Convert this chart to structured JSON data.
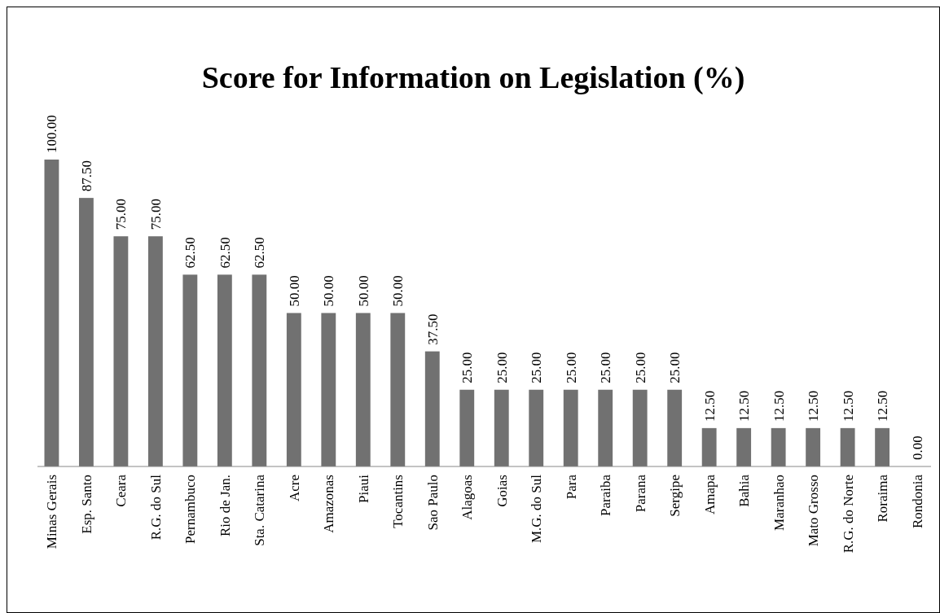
{
  "chart_data": {
    "type": "bar",
    "title": "Score for Information on Legislation (%)",
    "categories": [
      "Minas Gerais",
      "Esp. Santo",
      "Ceara",
      "R.G. do Sul",
      "Pernambuco",
      "Rio de Jan.",
      "Sta. Catarina",
      "Acre",
      "Amazonas",
      "Piaui",
      "Tocantins",
      "Sao Paulo",
      "Alagoas",
      "Goias",
      "M.G. do Sul",
      "Para",
      "Paraiba",
      "Parana",
      "Sergipe",
      "Amapa",
      "Bahia",
      "Maranhao",
      "Mato Grosso",
      "R.G. do Norte",
      "Roraima",
      "Rondonia"
    ],
    "values": [
      100,
      87.5,
      75,
      75,
      62.5,
      62.5,
      62.5,
      50,
      50,
      50,
      50,
      37.5,
      25,
      25,
      25,
      25,
      25,
      25,
      25,
      12.5,
      12.5,
      12.5,
      12.5,
      12.5,
      12.5,
      0
    ],
    "value_labels": [
      "100.00",
      "87.50",
      "75.00",
      "75.00",
      "62.50",
      "62.50",
      "62.50",
      "50.00",
      "50.00",
      "50.00",
      "50.00",
      "37.50",
      "25.00",
      "25.00",
      "25.00",
      "25.00",
      "25.00",
      "25.00",
      "25.00",
      "12.50",
      "12.50",
      "12.50",
      "12.50",
      "12.50",
      "12.50",
      "0.00"
    ],
    "color": "#717171"
  }
}
